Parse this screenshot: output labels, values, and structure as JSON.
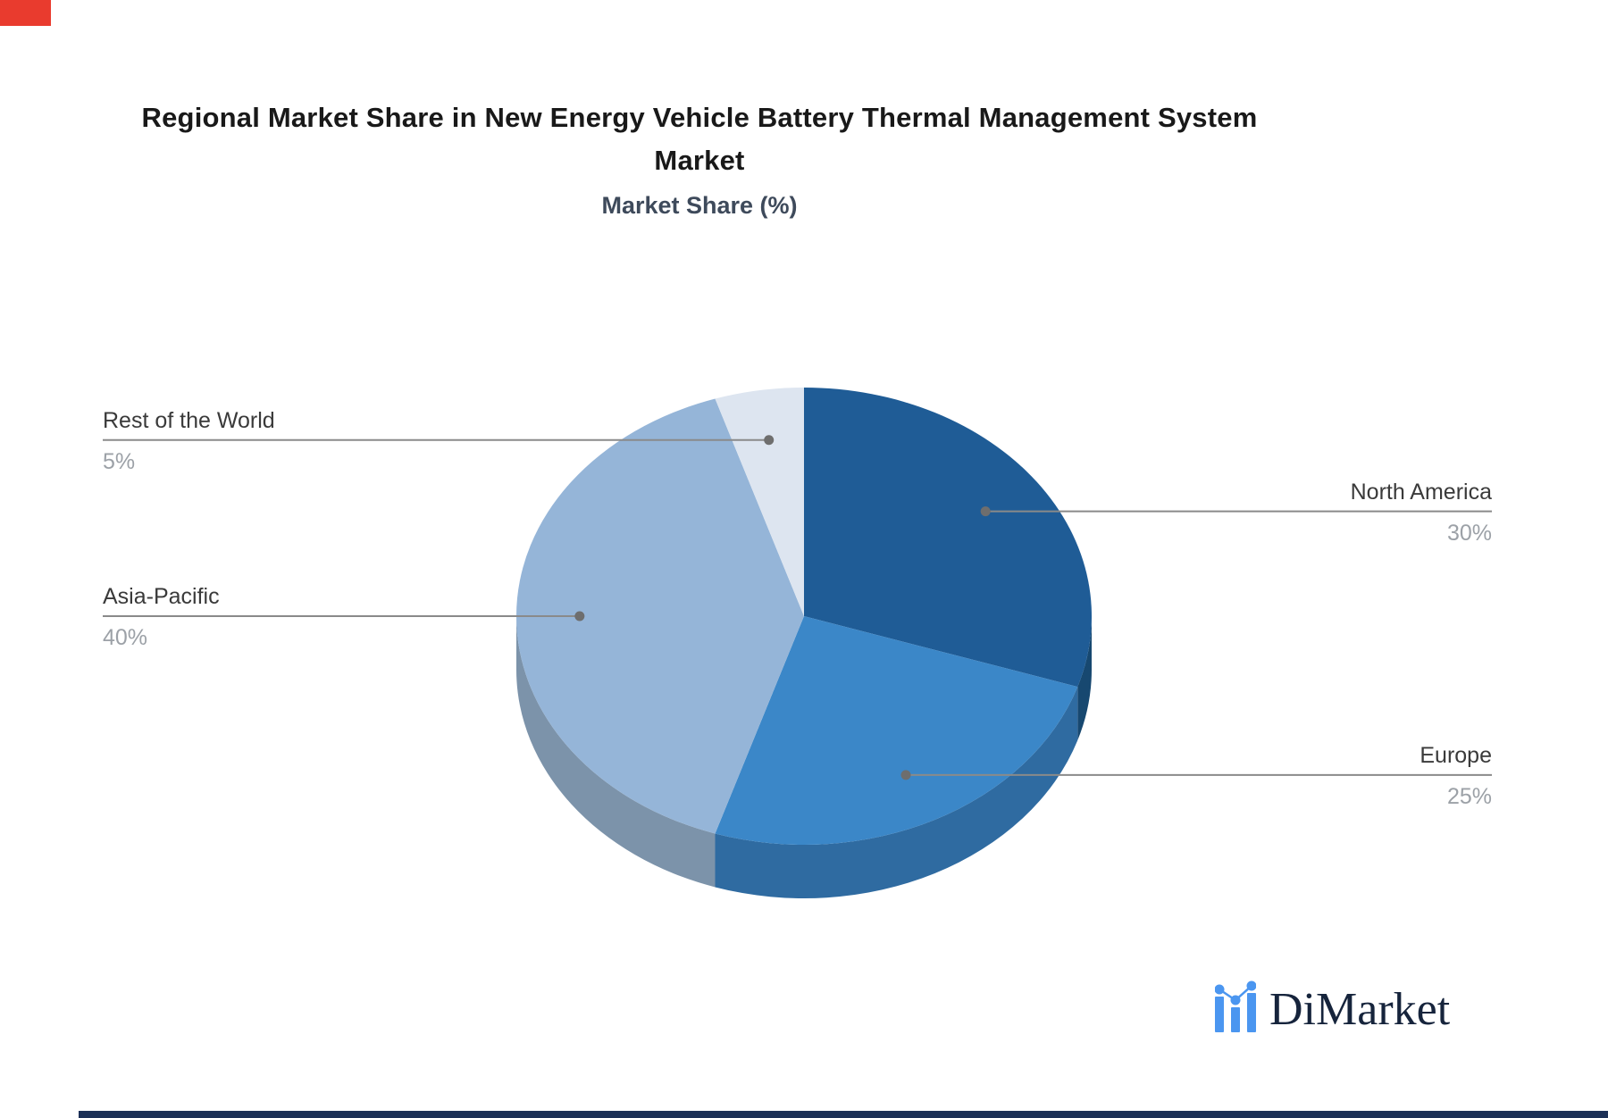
{
  "page": {
    "background": "#FFFFFF",
    "decor": {
      "top_left_patch_color": "#E93B2E",
      "bottom_bar_color": "#1C3057"
    }
  },
  "header": {
    "title_line1": "Regional Market Share in New Energy Vehicle Battery Thermal Management System",
    "title_line2": "Market",
    "subtitle": "Market Share (%)"
  },
  "branding": {
    "logo_text": "DiMarket",
    "logo_text_color": "#16243C",
    "logo_icon": "bar-chart-logo-icon",
    "logo_icon_color": "#4B96F0"
  },
  "chart_data": {
    "type": "pie",
    "style": "3d",
    "title": "Regional Market Share in New Energy Vehicle Battery Thermal Management System Market",
    "subtitle": "Market Share (%)",
    "unit": "%",
    "direction": "clockwise",
    "start_angle_deg": 0,
    "legend": "none (leader-line labels)",
    "slices": [
      {
        "label": "North America",
        "value": 30,
        "display": "30%",
        "color": "#1F5C96",
        "side_color": "#174870"
      },
      {
        "label": "Europe",
        "value": 25,
        "display": "25%",
        "color": "#3B87C8",
        "side_color": "#2F6BA1"
      },
      {
        "label": "Asia-Pacific",
        "value": 40,
        "display": "40%",
        "color": "#95B5D8",
        "side_color": "#7C93AA"
      },
      {
        "label": "Rest of the World",
        "value": 5,
        "display": "5%",
        "color": "#DDE5F0",
        "side_color": "#BAC5D7"
      }
    ],
    "label_color": "#3A3A3A",
    "percent_color": "#9CA1A7",
    "leader_line_color": "#8A8A8A",
    "leader_dot_color": "#6E6E6E"
  }
}
